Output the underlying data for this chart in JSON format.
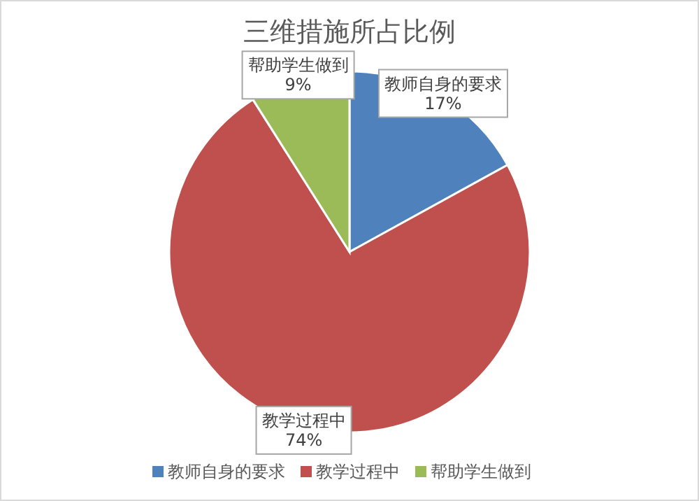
{
  "chart_data": {
    "type": "pie",
    "title": "三维措施所占比例",
    "categories": [
      "教师自身的要求",
      "教学过程中",
      "帮助学生做到"
    ],
    "values": [
      17,
      74,
      9
    ],
    "colors": [
      "#4f81bd",
      "#c0504d",
      "#9bbb59"
    ],
    "value_labels": [
      "17%",
      "74%",
      "9%"
    ],
    "legend": "bottom"
  }
}
